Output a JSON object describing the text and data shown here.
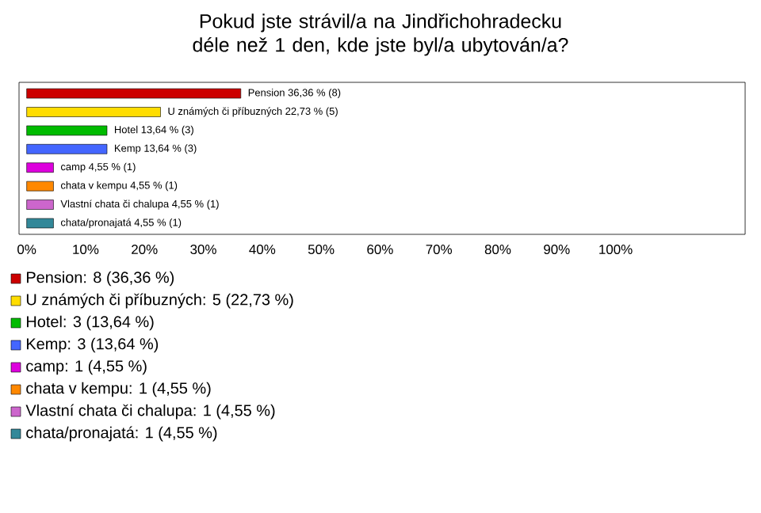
{
  "chart_data": {
    "type": "bar",
    "orientation": "horizontal",
    "title": "Pokud jste strávil/a na Jindřichohradecku déle než 1 den, kde jste byl/a ubytován/a?",
    "categories": [
      null,
      null,
      null,
      null,
      null,
      null,
      null,
      null
    ],
    "values": [
      36.36,
      22.73,
      13.64,
      13.64,
      4.55,
      4.55,
      4.55,
      4.55
    ],
    "colors": [
      "#cc0000",
      "#ffdd00",
      "#00bb00",
      "#4466ff",
      "#dd00dd",
      "#ff8800",
      "#cc66cc",
      "#338899"
    ],
    "value_labels": [
      "Pension 36,36 % (8)",
      "U známých či příbuzných 22,73 % (5)",
      "Hotel 13,64 % (3)",
      "Kemp 13,64 % (3)",
      "camp 4,55 % (1)",
      "chata v kempu 4,55 % (1)",
      "Vlastní chata či chalupa 4,55 % (1)",
      "chata/pronajatá 4,55 % (1)"
    ],
    "annotations": [
      "Pension: 8 (36,36 %)",
      "U známých či příbuzných: 5 (22,73 %)",
      "Hotel: 3 (13,64 %)",
      "Kemp: 3 (13,64 %)",
      "camp: 1 (4,55 %)",
      "chata v kempu: 1 (4,55 %)",
      "Vlastní chata či chalupa: 1 (4,55 %)",
      "chata/pronajatá: 1 (4,55 %)"
    ],
    "xlim": [
      -1.3,
      122
    ],
    "xticks": [
      {
        "value": 0,
        "label": "0%"
      },
      {
        "value": 10,
        "label": "10%"
      },
      {
        "value": 20,
        "label": "20%"
      },
      {
        "value": 30,
        "label": "30%"
      },
      {
        "value": 40,
        "label": "40%"
      },
      {
        "value": 50,
        "label": "50%"
      },
      {
        "value": 60,
        "label": "60%"
      },
      {
        "value": 70,
        "label": "70%"
      },
      {
        "value": 80,
        "label": "80%"
      },
      {
        "value": 90,
        "label": "90%"
      },
      {
        "value": 100,
        "label": "100%"
      }
    ],
    "grid": false
  }
}
